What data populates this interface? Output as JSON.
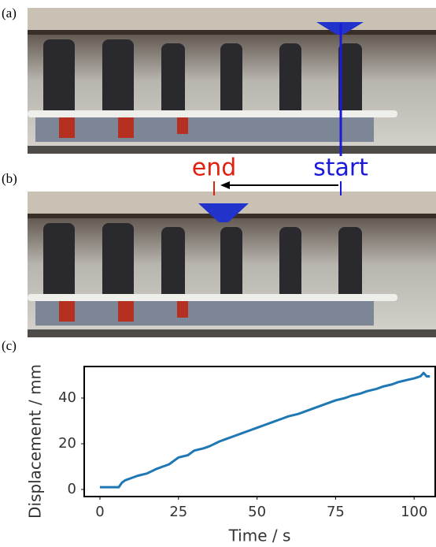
{
  "panels": {
    "a": "(a)",
    "b": "(b)",
    "c": "(c)"
  },
  "annotations": {
    "end": "end",
    "start": "start"
  },
  "chart_data": {
    "type": "line",
    "x_label": "Time / s",
    "y_label": "Displacement / mm",
    "x": [
      0,
      6,
      7,
      8,
      10,
      12,
      15,
      18,
      20,
      22,
      25,
      28,
      30,
      33,
      35,
      38,
      40,
      43,
      45,
      48,
      50,
      53,
      55,
      58,
      60,
      63,
      65,
      68,
      70,
      73,
      75,
      78,
      80,
      83,
      85,
      88,
      90,
      93,
      95,
      98,
      100,
      102,
      103,
      104,
      105
    ],
    "series": [
      {
        "color": "#1f77b4",
        "values": [
          1,
          1,
          3,
          4,
          5,
          6,
          7,
          9,
          10,
          11,
          14,
          15,
          17,
          18,
          19,
          21,
          22,
          23.5,
          24.5,
          26,
          27,
          28.5,
          29.5,
          31,
          32,
          33,
          34,
          35.5,
          36.5,
          38,
          39,
          40,
          41,
          42,
          43,
          44,
          45,
          46,
          47,
          48,
          48.6,
          49.5,
          51,
          49.5,
          49.5
        ]
      }
    ],
    "xlim": [
      -5,
      106.7
    ],
    "ylim": [
      -3.1,
      53.8
    ],
    "xticks": [
      0,
      25,
      50,
      75,
      100
    ],
    "yticks": [
      0,
      20,
      40
    ]
  }
}
